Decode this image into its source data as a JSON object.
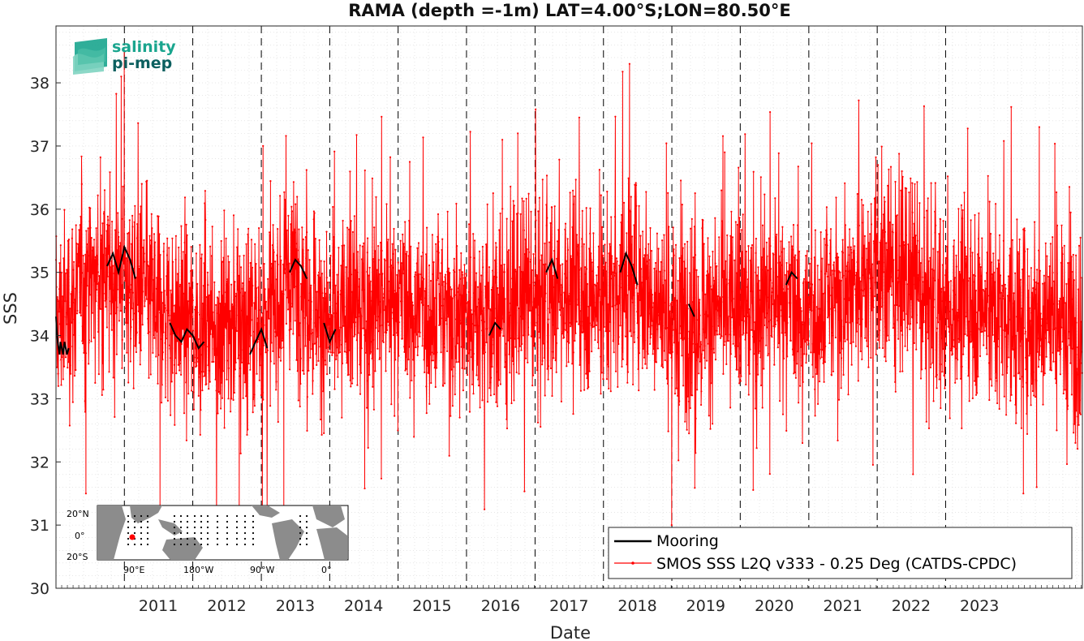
{
  "chart_data": {
    "type": "line",
    "title": "RAMA (depth =-1m) LAT=4.00°S;LON=80.50°E",
    "xlabel": "Date",
    "ylabel": "SSS",
    "xlim": [
      "2010-01-01",
      "2024-12-31"
    ],
    "ylim": [
      30,
      38.9
    ],
    "yticks": [
      30,
      31,
      32,
      33,
      34,
      35,
      36,
      37,
      38
    ],
    "xticks": [
      "2011",
      "2012",
      "2013",
      "2014",
      "2015",
      "2016",
      "2017",
      "2018",
      "2019",
      "2020",
      "2021",
      "2022",
      "2023"
    ],
    "year_lines": [
      "2011",
      "2012",
      "2013",
      "2014",
      "2015",
      "2016",
      "2017",
      "2018",
      "2019",
      "2020",
      "2021",
      "2022",
      "2023"
    ],
    "grid": "minor-dotted",
    "legend_position": "bottom-right",
    "series": [
      {
        "name": "Mooring",
        "color": "#000000",
        "style": "line",
        "points": [
          [
            "2010-01-01",
            34.3
          ],
          [
            "2010-01-05",
            34.1
          ],
          [
            "2010-01-10",
            33.9
          ],
          [
            "2010-01-15",
            33.8
          ],
          [
            "2010-01-20",
            33.7
          ],
          [
            "2010-01-25",
            33.9
          ],
          [
            "2010-02-01",
            33.8
          ],
          [
            "2010-02-08",
            33.7
          ],
          [
            "2010-02-15",
            33.9
          ],
          [
            "2010-02-22",
            33.8
          ],
          [
            "2010-03-01",
            33.7
          ],
          [
            "2010-03-10",
            33.8
          ],
          [
            "2010-10-01",
            35.1
          ],
          [
            "2010-11-01",
            35.3
          ],
          [
            "2010-12-01",
            35.0
          ],
          [
            "2011-01-01",
            35.4
          ],
          [
            "2011-02-01",
            35.2
          ],
          [
            "2011-03-01",
            34.9
          ],
          [
            "2011-09-01",
            34.2
          ],
          [
            "2011-10-01",
            34.0
          ],
          [
            "2011-11-01",
            33.9
          ],
          [
            "2011-12-01",
            34.1
          ],
          [
            "2012-01-01",
            34.0
          ],
          [
            "2012-02-01",
            33.8
          ],
          [
            "2012-03-01",
            33.9
          ],
          [
            "2012-11-01",
            33.7
          ],
          [
            "2012-12-01",
            33.9
          ],
          [
            "2013-01-01",
            34.1
          ],
          [
            "2013-02-01",
            33.8
          ],
          [
            "2013-06-01",
            35.0
          ],
          [
            "2013-07-01",
            35.2
          ],
          [
            "2013-08-01",
            35.1
          ],
          [
            "2013-09-01",
            34.9
          ],
          [
            "2013-12-01",
            34.2
          ],
          [
            "2014-01-01",
            33.9
          ],
          [
            "2014-02-01",
            34.1
          ],
          [
            "2016-05-01",
            34.0
          ],
          [
            "2016-06-01",
            34.2
          ],
          [
            "2016-07-01",
            34.1
          ],
          [
            "2017-03-01",
            35.0
          ],
          [
            "2017-04-01",
            35.2
          ],
          [
            "2017-05-01",
            34.9
          ],
          [
            "2018-04-01",
            35.0
          ],
          [
            "2018-05-01",
            35.3
          ],
          [
            "2018-06-01",
            35.1
          ],
          [
            "2018-07-01",
            34.8
          ],
          [
            "2019-04-01",
            34.5
          ],
          [
            "2019-05-01",
            34.3
          ],
          [
            "2020-09-01",
            34.8
          ],
          [
            "2020-10-01",
            35.0
          ],
          [
            "2020-11-01",
            34.9
          ]
        ]
      },
      {
        "name": "SMOS SSS L2Q v333 - 0.25 Deg (CATDS-CPDC)",
        "color": "#ff0000",
        "style": "line-with-dots",
        "mean_by_year": [
          [
            "2010-01-01",
            34.2
          ],
          [
            "2010-07-01",
            34.9
          ],
          [
            "2011-01-01",
            34.9
          ],
          [
            "2011-07-01",
            34.5
          ],
          [
            "2012-01-01",
            34.2
          ],
          [
            "2012-07-01",
            34.3
          ],
          [
            "2013-01-01",
            34.2
          ],
          [
            "2013-07-01",
            35.0
          ],
          [
            "2014-01-01",
            34.1
          ],
          [
            "2014-07-01",
            34.5
          ],
          [
            "2015-01-01",
            34.5
          ],
          [
            "2015-07-01",
            34.4
          ],
          [
            "2016-01-01",
            34.4
          ],
          [
            "2016-07-01",
            34.3
          ],
          [
            "2017-01-01",
            34.6
          ],
          [
            "2017-07-01",
            34.7
          ],
          [
            "2018-01-01",
            34.5
          ],
          [
            "2018-07-01",
            35.0
          ],
          [
            "2019-01-01",
            34.2
          ],
          [
            "2019-07-01",
            34.4
          ],
          [
            "2020-01-01",
            34.4
          ],
          [
            "2020-07-01",
            34.6
          ],
          [
            "2021-01-01",
            34.3
          ],
          [
            "2021-07-01",
            34.7
          ],
          [
            "2022-01-01",
            35.1
          ],
          [
            "2022-07-01",
            34.8
          ],
          [
            "2023-01-01",
            34.4
          ],
          [
            "2023-07-01",
            34.5
          ],
          [
            "2024-01-01",
            34.2
          ],
          [
            "2024-07-01",
            34.4
          ],
          [
            "2024-12-31",
            34.0
          ]
        ],
        "noise_sd": 0.75,
        "samples_per_year": 260,
        "extremes": [
          [
            "2010-12-31",
            38.5
          ],
          [
            "2010-12-15",
            38.1
          ],
          [
            "2011-07-10",
            31.2
          ],
          [
            "2018-05-20",
            38.3
          ],
          [
            "2016-10-01",
            37.2
          ],
          [
            "2012-09-05",
            31.1
          ],
          [
            "2013-05-01",
            31.1
          ],
          [
            "2018-12-31",
            31.0
          ],
          [
            "2024-05-15",
            37.3
          ],
          [
            "2024-02-20",
            31.5
          ],
          [
            "2013-01-10",
            37.0
          ],
          [
            "2019-10-10",
            36.9
          ],
          [
            "2022-01-05",
            36.7
          ],
          [
            "2016-07-10",
            37.1
          ],
          [
            "2010-06-10",
            31.5
          ],
          [
            "2024-05-01",
            31.6
          ]
        ]
      }
    ],
    "inset_map": {
      "ylabels": [
        "20°N",
        "0°",
        "20°S"
      ],
      "xlabels": [
        "90°E",
        "180°W",
        "90°W",
        "0°"
      ],
      "marker_color": "#ff0000"
    }
  },
  "logo": {
    "line1": "salinity",
    "line2": "pi-mep",
    "color1": "#1aa58e",
    "color2": "#0c5f5f"
  }
}
